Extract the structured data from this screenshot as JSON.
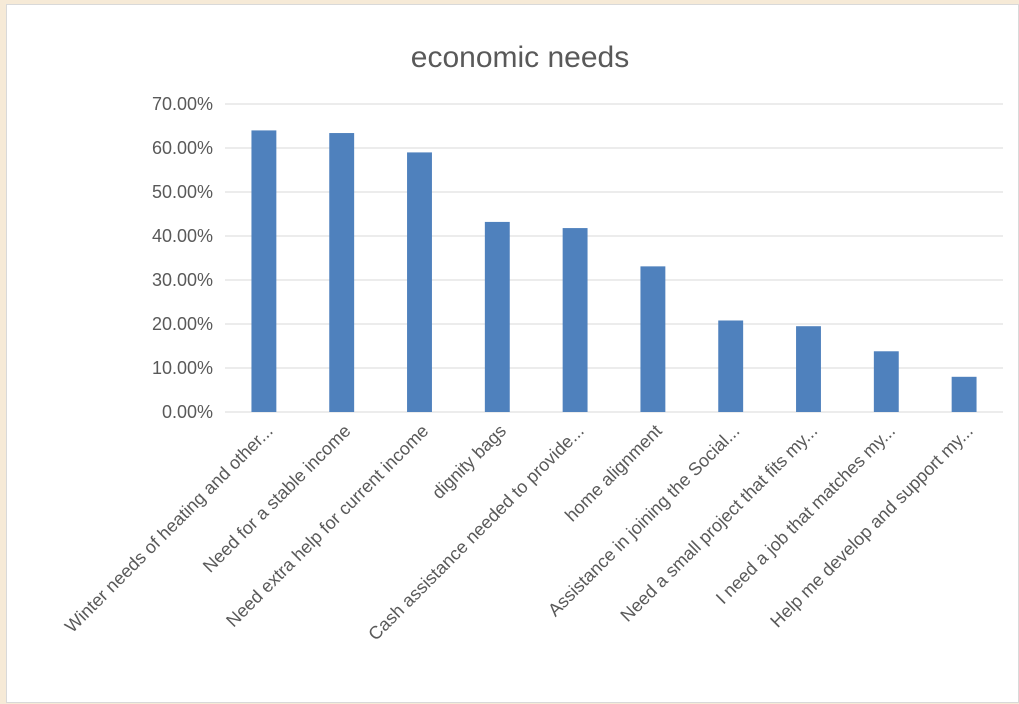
{
  "chart_data": {
    "type": "bar",
    "title": "economic needs",
    "xlabel": "",
    "ylabel": "",
    "ylim": [
      0,
      0.7
    ],
    "y_ticks": [
      "0.00%",
      "10.00%",
      "20.00%",
      "30.00%",
      "40.00%",
      "50.00%",
      "60.00%",
      "70.00%"
    ],
    "grid": true,
    "legend": "none",
    "bar_color": "#4f81bd",
    "categories": [
      "Winter needs of heating and other...",
      "Need for a stable income",
      "Need extra help for current income",
      "dignity bags",
      "Cash assistance needed to provide...",
      "home alignment",
      "Assistance in joining the Social...",
      "Need a small project that fits my...",
      "I need a job that matches my...",
      "Help me develop and support my..."
    ],
    "values": [
      0.64,
      0.634,
      0.59,
      0.432,
      0.418,
      0.331,
      0.208,
      0.195,
      0.138,
      0.08
    ]
  }
}
